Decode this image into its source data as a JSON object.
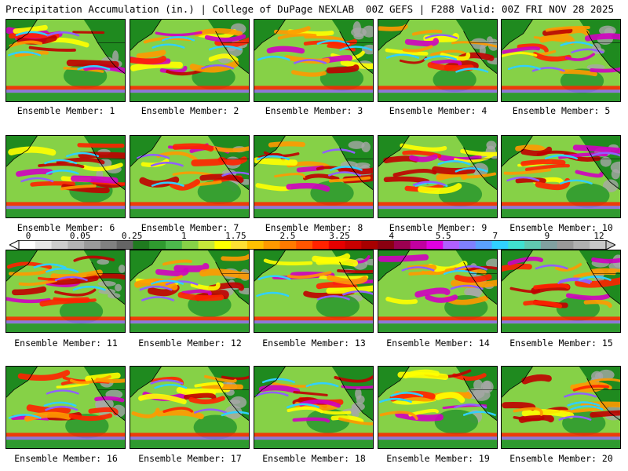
{
  "header": {
    "title_left": "Precipitation Accumulation (in.) | College of DuPage NEXLAB",
    "title_right": "00Z GEFS | F288 Valid: 00Z FRI NOV 28 2025"
  },
  "panels": [
    {
      "label": "Ensemble Member: 1"
    },
    {
      "label": "Ensemble Member: 2"
    },
    {
      "label": "Ensemble Member: 3"
    },
    {
      "label": "Ensemble Member: 4"
    },
    {
      "label": "Ensemble Member: 5"
    },
    {
      "label": "Ensemble Member: 6"
    },
    {
      "label": "Ensemble Member: 7"
    },
    {
      "label": "Ensemble Member: 8"
    },
    {
      "label": "Ensemble Member: 9"
    },
    {
      "label": "Ensemble Member: 10"
    },
    {
      "label": "Ensemble Member: 11"
    },
    {
      "label": "Ensemble Member: 12"
    },
    {
      "label": "Ensemble Member: 13"
    },
    {
      "label": "Ensemble Member: 14"
    },
    {
      "label": "Ensemble Member: 15"
    },
    {
      "label": "Ensemble Member: 16"
    },
    {
      "label": "Ensemble Member: 17"
    },
    {
      "label": "Ensemble Member: 18"
    },
    {
      "label": "Ensemble Member: 19"
    },
    {
      "label": "Ensemble Member: 20"
    }
  ],
  "colorbar": {
    "ticks": [
      "0",
      "0.05",
      "0.25",
      "1",
      "1.75",
      "2.5",
      "3.25",
      "4",
      "5.5",
      "7",
      "9",
      "12"
    ],
    "colors": [
      "#ffffff",
      "#e6e6e6",
      "#cccccc",
      "#b3b3b3",
      "#9a9a9a",
      "#808080",
      "#656565",
      "#1f7a1f",
      "#2f9a2f",
      "#4cb84c",
      "#86d147",
      "#c6e83a",
      "#ffff00",
      "#ffe033",
      "#ffc000",
      "#ff9900",
      "#ff7a00",
      "#ff5500",
      "#ff2200",
      "#e60000",
      "#c80000",
      "#a80000",
      "#8a0010",
      "#9b0050",
      "#c000a0",
      "#e000e0",
      "#b060ff",
      "#8080ff",
      "#5aa0ff",
      "#30d0ff",
      "#40e0d0",
      "#60c8b0",
      "#80a0a0",
      "#999999",
      "#b0b0b0",
      "#c8c8c8"
    ],
    "palette": {
      "ocean_low": "#2f9a2f",
      "ocean_mid": "#86d147",
      "yellow": "#ffff00",
      "orange": "#ff9900",
      "red": "#ff2200",
      "darkred": "#c00000",
      "magenta": "#d000c0",
      "purple": "#9060ff",
      "cyan": "#30d0ff",
      "land_gray": "#a8a8a8",
      "green": "#1f8a1f"
    }
  }
}
